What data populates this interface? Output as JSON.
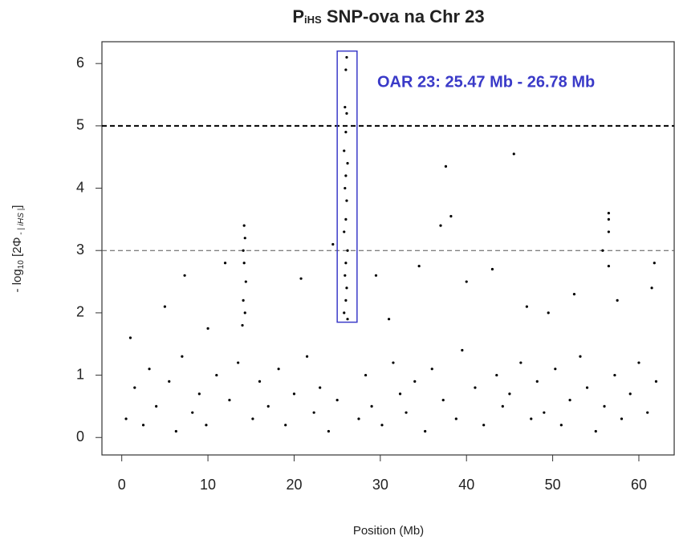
{
  "chart_data": {
    "type": "scatter",
    "title_parts": [
      "P",
      "iHS",
      " SNP-ova na Chr 23"
    ],
    "xlabel": "Position (Mb)",
    "ylabel_parts": [
      "- log",
      "10",
      " [2Φ",
      " - | iHS |",
      "]"
    ],
    "annotation": "OAR 23: 25.47 Mb - 26.78 Mb",
    "highlight": {
      "xlim": [
        25.0,
        27.3
      ],
      "ylim": [
        1.85,
        6.2
      ],
      "color": "#3a3ac8"
    },
    "hlines": [
      {
        "y": 5,
        "color": "#000000",
        "width": 2
      },
      {
        "y": 3,
        "color": "#555555",
        "width": 1
      }
    ],
    "xlim": [
      -2.3,
      64.1
    ],
    "ylim": [
      -0.28,
      6.35
    ],
    "xticks": [
      0,
      10,
      20,
      30,
      40,
      50,
      60
    ],
    "yticks": [
      0,
      1,
      2,
      3,
      4,
      5,
      6
    ],
    "color": "#000000",
    "x": [
      26.1,
      26.0,
      25.9,
      26.1,
      26.0,
      25.8,
      26.2,
      26.0,
      25.9,
      26.1,
      26.0,
      25.8,
      26.2,
      26.0,
      25.9,
      26.1,
      26.0,
      25.8,
      26.2,
      14.2,
      14.3,
      14.1,
      14.2,
      14.4,
      14.1,
      14.3,
      14.0,
      24.5,
      45.5,
      37.6,
      38.2,
      37.0,
      56.5,
      56.5,
      56.5,
      56.5,
      55.8,
      12.0,
      7.3,
      29.5,
      34.5,
      43.0,
      40.0,
      20.8,
      61.5,
      61.8,
      52.5,
      57.5,
      5.0,
      1.0,
      10.0,
      31.0,
      47.0,
      49.5,
      0.5,
      1.5,
      2.5,
      3.2,
      4.0,
      5.5,
      6.3,
      7.0,
      8.2,
      9.0,
      9.8,
      11.0,
      12.5,
      13.5,
      15.2,
      16.0,
      17.0,
      18.2,
      19.0,
      20.0,
      21.5,
      22.3,
      23.0,
      24.0,
      25.0,
      27.5,
      28.3,
      29.0,
      30.2,
      31.5,
      32.3,
      33.0,
      34.0,
      35.2,
      36.0,
      37.3,
      38.8,
      39.5,
      41.0,
      42.0,
      43.5,
      44.2,
      45.0,
      46.3,
      47.5,
      48.2,
      49.0,
      50.3,
      51.0,
      52.0,
      53.2,
      54.0,
      55.0,
      56.0,
      57.2,
      58.0,
      59.0,
      60.0,
      61.0,
      62.0
    ],
    "values": [
      6.1,
      5.9,
      5.3,
      5.2,
      4.9,
      4.6,
      4.4,
      4.2,
      4.0,
      3.8,
      3.5,
      3.3,
      3.0,
      2.8,
      2.6,
      2.4,
      2.2,
      2.0,
      1.9,
      3.4,
      3.2,
      3.0,
      2.8,
      2.5,
      2.2,
      2.0,
      1.8,
      3.1,
      4.55,
      4.35,
      3.55,
      3.4,
      3.6,
      3.5,
      3.3,
      2.75,
      3.0,
      2.8,
      2.6,
      2.6,
      2.75,
      2.7,
      2.5,
      2.55,
      2.4,
      2.8,
      2.3,
      2.2,
      2.1,
      1.6,
      1.75,
      1.9,
      2.1,
      2.0,
      0.3,
      0.8,
      0.2,
      1.1,
      0.5,
      0.9,
      0.1,
      1.3,
      0.4,
      0.7,
      0.2,
      1.0,
      0.6,
      1.2,
      0.3,
      0.9,
      0.5,
      1.1,
      0.2,
      0.7,
      1.3,
      0.4,
      0.8,
      0.1,
      0.6,
      0.3,
      1.0,
      0.5,
      0.2,
      1.2,
      0.7,
      0.4,
      0.9,
      0.1,
      1.1,
      0.6,
      0.3,
      1.4,
      0.8,
      0.2,
      1.0,
      0.5,
      0.7,
      1.2,
      0.3,
      0.9,
      0.4,
      1.1,
      0.2,
      0.6,
      1.3,
      0.8,
      0.1,
      0.5,
      1.0,
      0.3,
      0.7,
      1.2,
      0.4,
      0.9
    ]
  }
}
